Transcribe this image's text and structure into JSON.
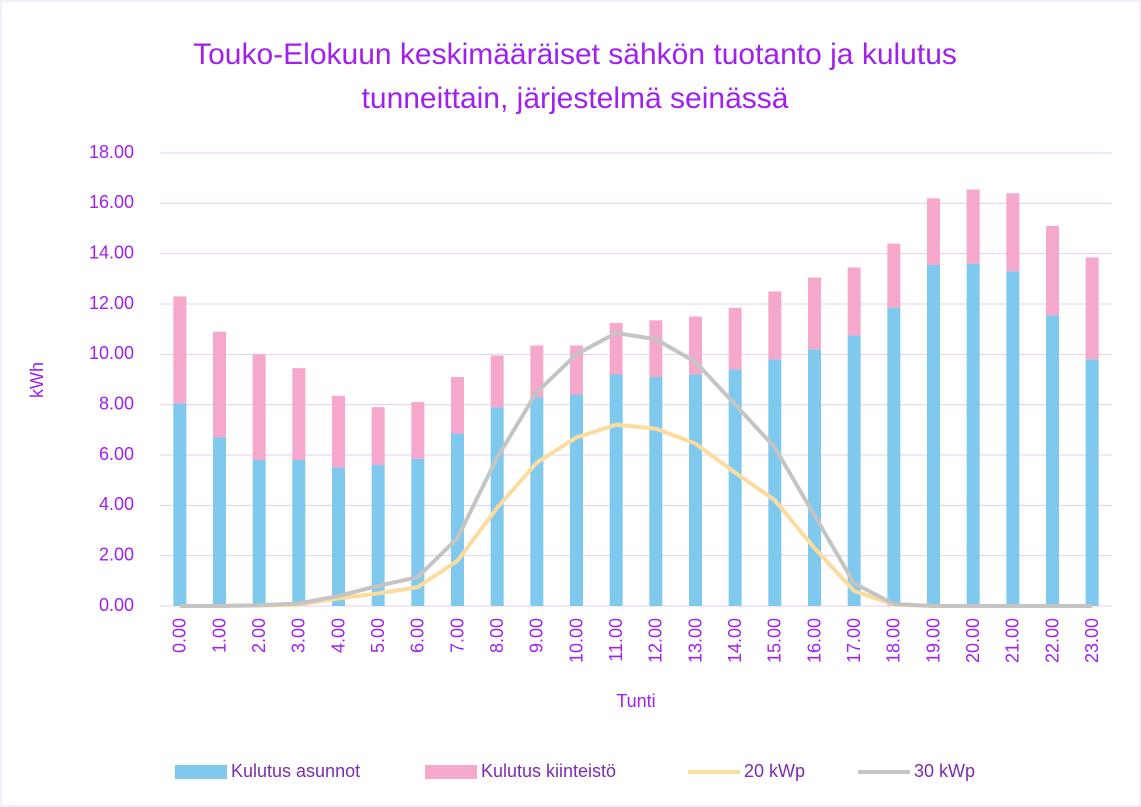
{
  "chart_data": {
    "type": "bar-line",
    "title": [
      "Touko-Elokuun keskimääräiset sähkön tuotanto ja kulutus",
      "tunneittain, järjestelmä seinässä"
    ],
    "y_label": "kWh",
    "x_label": "Tunti",
    "categories": [
      "0.00",
      "1.00",
      "2.00",
      "3.00",
      "4.00",
      "5.00",
      "6.00",
      "7.00",
      "8.00",
      "9.00",
      "10.00",
      "11.00",
      "12.00",
      "13.00",
      "14.00",
      "15.00",
      "16.00",
      "17.00",
      "18.00",
      "19.00",
      "20.00",
      "21.00",
      "22.00",
      "23.00"
    ],
    "ylim": [
      0,
      18
    ],
    "yticks": [
      {
        "value": 0,
        "label": "0.00"
      },
      {
        "value": 2,
        "label": "2.00"
      },
      {
        "value": 4,
        "label": "4.00"
      },
      {
        "value": 6,
        "label": "6.00"
      },
      {
        "value": 8,
        "label": "8.00"
      },
      {
        "value": 10,
        "label": "10.00"
      },
      {
        "value": 12,
        "label": "12.00"
      },
      {
        "value": 14,
        "label": "14.00"
      },
      {
        "value": 16,
        "label": "16.00"
      },
      {
        "value": 18,
        "label": "18.00"
      }
    ],
    "grid": true,
    "legend": "bottom",
    "series": [
      {
        "name": "Kulutus asunnot",
        "kind": "bar",
        "color": "#7fc9ee",
        "values": [
          8.05,
          6.7,
          5.8,
          5.8,
          5.5,
          5.6,
          5.85,
          6.85,
          7.9,
          8.3,
          8.4,
          9.2,
          9.1,
          9.2,
          9.4,
          9.8,
          10.2,
          10.75,
          11.85,
          13.55,
          13.6,
          13.3,
          11.55,
          9.8
        ]
      },
      {
        "name": "Kulutus kiinteistö",
        "kind": "bar",
        "color": "#f5a8cb",
        "values": [
          4.25,
          4.2,
          4.2,
          3.65,
          2.85,
          2.3,
          2.25,
          2.25,
          2.05,
          2.05,
          1.95,
          2.05,
          2.25,
          2.3,
          2.45,
          2.7,
          2.85,
          2.7,
          2.55,
          2.65,
          2.95,
          3.1,
          3.55,
          4.05
        ]
      },
      {
        "name": "20 kWp",
        "kind": "line",
        "color": "#fcdc9e",
        "values": [
          0,
          0,
          0.02,
          0.05,
          0.3,
          0.5,
          0.75,
          1.8,
          3.9,
          5.7,
          6.7,
          7.2,
          7.05,
          6.45,
          5.3,
          4.2,
          2.3,
          0.6,
          0.05,
          0,
          0,
          0,
          0,
          0
        ]
      },
      {
        "name": "30 kWp",
        "kind": "line",
        "color": "#c4c4c4",
        "values": [
          0,
          0,
          0.03,
          0.1,
          0.4,
          0.8,
          1.15,
          2.7,
          5.9,
          8.5,
          10.0,
          10.85,
          10.6,
          9.7,
          8.0,
          6.3,
          3.6,
          0.9,
          0.08,
          0,
          0,
          0,
          0,
          0
        ]
      }
    ]
  }
}
